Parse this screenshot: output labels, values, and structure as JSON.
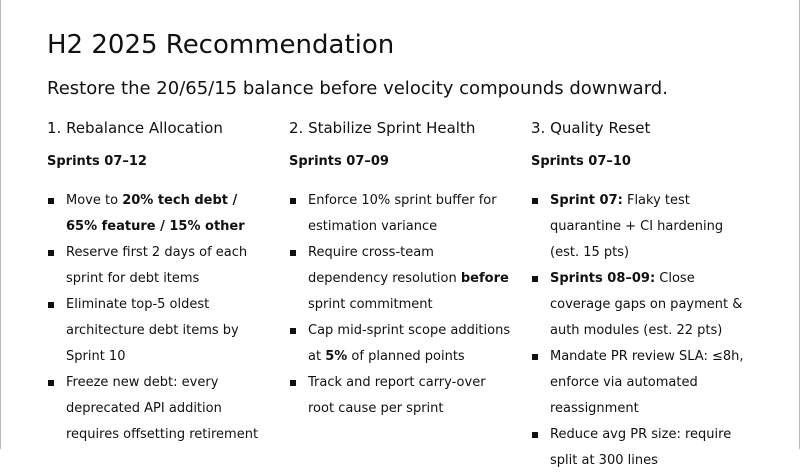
{
  "slide": {
    "title": "H2 2025 Recommendation",
    "subtitle": "Restore the 20/65/15 balance before velocity compounds downward.",
    "columns": [
      {
        "heading": "1. Rebalance Allocation",
        "sprints": "Sprints 07–12",
        "bullets": [
          [
            {
              "text": "Move to ",
              "bold": false
            },
            {
              "text": "20% tech debt / 65% feature / 15% other",
              "bold": true
            }
          ],
          [
            {
              "text": "Reserve first 2 days of each sprint for debt items",
              "bold": false
            }
          ],
          [
            {
              "text": "Eliminate top-5 oldest architecture debt items by Sprint 10",
              "bold": false
            }
          ],
          [
            {
              "text": "Freeze new debt: every deprecated API addition requires offsetting retirement",
              "bold": false
            }
          ]
        ]
      },
      {
        "heading": "2. Stabilize Sprint Health",
        "sprints": "Sprints 07–09",
        "bullets": [
          [
            {
              "text": "Enforce 10% sprint buffer for estimation variance",
              "bold": false
            }
          ],
          [
            {
              "text": "Require cross-team dependency resolution ",
              "bold": false
            },
            {
              "text": "before",
              "bold": true
            },
            {
              "text": " sprint commitment",
              "bold": false
            }
          ],
          [
            {
              "text": "Cap mid-sprint scope additions at ",
              "bold": false
            },
            {
              "text": "5%",
              "bold": true
            },
            {
              "text": " of planned points",
              "bold": false
            }
          ],
          [
            {
              "text": "Track and report carry-over root cause per sprint",
              "bold": false
            }
          ]
        ]
      },
      {
        "heading": "3. Quality Reset",
        "sprints": "Sprints 07–10",
        "bullets": [
          [
            {
              "text": "Sprint 07:",
              "bold": true
            },
            {
              "text": " Flaky test quarantine + CI hardening (est. 15 pts)",
              "bold": false
            }
          ],
          [
            {
              "text": "Sprints 08–09:",
              "bold": true
            },
            {
              "text": " Close coverage gaps on payment & auth modules (est. 22 pts)",
              "bold": false
            }
          ],
          [
            {
              "text": "Mandate PR review SLA: ≤8h, enforce via automated reassignment",
              "bold": false
            }
          ],
          [
            {
              "text": "Reduce avg PR size: require split at 300 lines",
              "bold": false
            }
          ]
        ]
      }
    ]
  }
}
